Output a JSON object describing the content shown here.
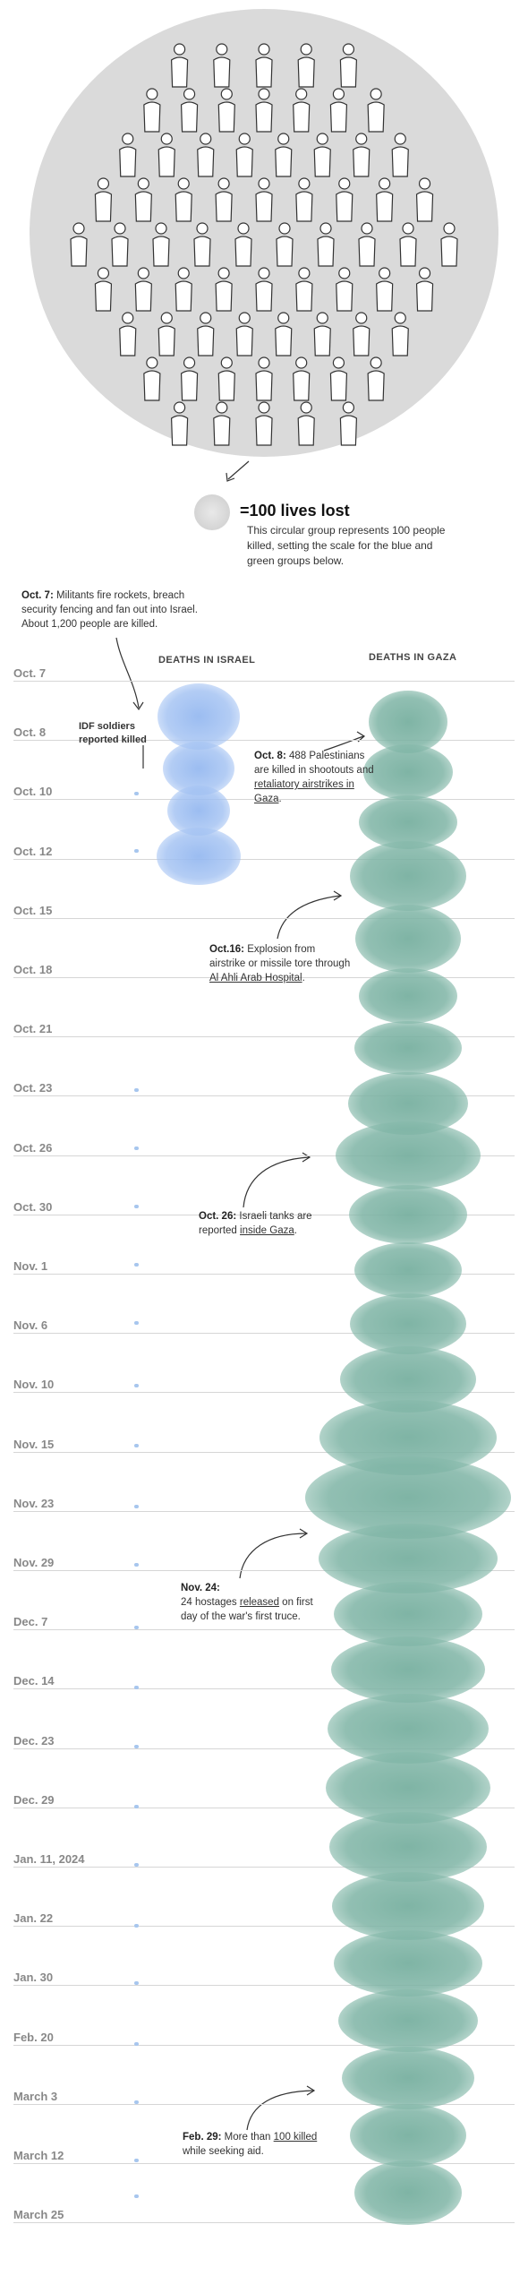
{
  "legend": {
    "title": "=100 lives lost",
    "text": "This circular group represents 100 people killed, setting the scale for the blue and green groups below."
  },
  "headers": {
    "israel": "DEATHS IN ISRAEL",
    "gaza": "DEATHS IN GAZA"
  },
  "annotations": {
    "oct7": {
      "date": "Oct. 7:",
      "text": "Militants fire rockets, breach security fencing and fan out into Israel. About 1,200 people are killed."
    },
    "idf": {
      "text": "IDF soldiers reported killed"
    },
    "oct8": {
      "date": "Oct. 8:",
      "text_a": "488 Palestinians are killed in shootouts and ",
      "link": "retaliatory airstrikes in Gaza",
      "text_b": "."
    },
    "oct16": {
      "date": "Oct.16:",
      "text_a": "Explosion from airstrike or missile tore through ",
      "link": "Al Ahli Arab Hospital",
      "text_b": "."
    },
    "oct26": {
      "date": "Oct. 26:",
      "text_a": "Israeli tanks are reported ",
      "link": "inside Gaza",
      "text_b": "."
    },
    "nov24": {
      "date": "Nov. 24:",
      "text_a": "24 hostages ",
      "link": "released",
      "text_b": " on first day of the war's first truce."
    },
    "feb29": {
      "date": "Feb. 29:",
      "text_a": "More than ",
      "link": "100 killed",
      "text_b": " while seeking aid."
    }
  },
  "dates": [
    "Oct. 7",
    "Oct. 8",
    "Oct. 10",
    "Oct. 12",
    "Oct. 15",
    "Oct. 18",
    "Oct. 21",
    "Oct. 23",
    "Oct. 26",
    "Oct. 30",
    "Nov. 1",
    "Nov. 6",
    "Nov. 10",
    "Nov. 15",
    "Nov. 23",
    "Nov. 29",
    "Dec. 7",
    "Dec. 14",
    "Dec. 23",
    "Dec. 29",
    "Jan. 11, 2024",
    "Jan. 22",
    "Jan. 30",
    "Feb. 20",
    "March 3",
    "March 12",
    "March 25"
  ],
  "colors": {
    "gaza": "#7db4a4",
    "israel": "#9cc0f0",
    "legend_dot": "#d4d4d4",
    "crowd_bg": "#d9d9d9"
  },
  "icons": {
    "crowd": "crowd-illustration",
    "arrow": "curved-arrow-icon"
  }
}
